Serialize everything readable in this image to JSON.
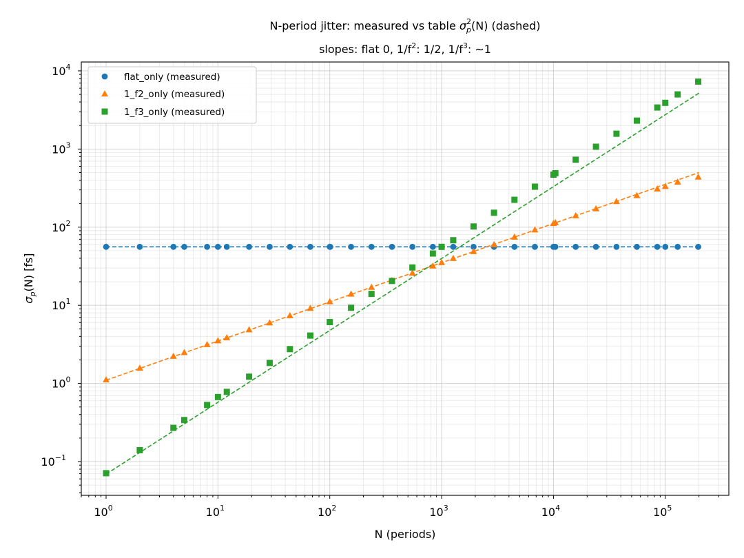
{
  "chart_data": {
    "type": "scatter",
    "title": "N-period jitter: measured vs table σ²p(N) (dashed)",
    "title_parts": {
      "before": "N-period jitter: measured vs table ",
      "sigma": "σ",
      "sup": "2",
      "sub": "p",
      "after": "(N) (dashed)"
    },
    "subtitle": "slopes: flat 0,  1/f²: 1/2,  1/f³: ~1",
    "subtitle_parts": {
      "p1": "slopes: flat 0,  1/f",
      "sup1": "2",
      "p2": ": 1/2,  1/f",
      "sup2": "3",
      "p3": ": ~1"
    },
    "xlabel": "N  (periods)",
    "ylabel": "σp(N)  [fs]",
    "ylabel_parts": {
      "sigma": "σ",
      "sub": "p",
      "after": "(N)  [fs]"
    },
    "xscale": "log",
    "yscale": "log",
    "xlim": [
      0.6,
      370000
    ],
    "ylim": [
      0.037,
      13000
    ],
    "x_tick_labels": [
      {
        "value": 1,
        "base": "10",
        "exp": "0"
      },
      {
        "value": 10,
        "base": "10",
        "exp": "1"
      },
      {
        "value": 100,
        "base": "10",
        "exp": "2"
      },
      {
        "value": 1000,
        "base": "10",
        "exp": "3"
      },
      {
        "value": 10000,
        "base": "10",
        "exp": "4"
      },
      {
        "value": 100000,
        "base": "10",
        "exp": "5"
      }
    ],
    "y_tick_labels": [
      {
        "value": 0.1,
        "base": "10",
        "exp": "−1"
      },
      {
        "value": 1,
        "base": "10",
        "exp": "0"
      },
      {
        "value": 10,
        "base": "10",
        "exp": "1"
      },
      {
        "value": 100,
        "base": "10",
        "exp": "2"
      },
      {
        "value": 1000,
        "base": "10",
        "exp": "3"
      },
      {
        "value": 10000,
        "base": "10",
        "exp": "4"
      }
    ],
    "grid": true,
    "legend_position": "top-left",
    "series": [
      {
        "name": "flat_only (measured)",
        "color": "#1f77b4",
        "marker": "circle",
        "x": [
          1,
          2,
          4,
          5,
          8,
          10,
          12,
          19,
          29,
          44,
          67,
          100,
          101,
          155,
          236,
          360,
          548,
          835,
          1000,
          1270,
          1930,
          2940,
          4480,
          6820,
          10000,
          10400,
          15800,
          24000,
          36600,
          55700,
          84800,
          100000,
          129000,
          197000
        ],
        "y": [
          56,
          56,
          56,
          56,
          56,
          56,
          56,
          56,
          56,
          56,
          56,
          56,
          56,
          56,
          56,
          56,
          56,
          56,
          56,
          56,
          56,
          56,
          56,
          56,
          56,
          56,
          56,
          56,
          56,
          56,
          56,
          56,
          56,
          56
        ],
        "table": {
          "x": [
            1,
            200000
          ],
          "y": [
            56,
            56
          ]
        }
      },
      {
        "name": "1_f2_only (measured)",
        "color": "#ff7f0e",
        "marker": "triangle",
        "x": [
          1,
          2,
          4,
          5,
          8,
          10,
          12,
          19,
          29,
          44,
          67,
          100,
          155,
          236,
          360,
          548,
          835,
          1000,
          1270,
          1930,
          2940,
          4480,
          6820,
          10000,
          10400,
          15800,
          24000,
          36600,
          55700,
          84800,
          100000,
          129000,
          197000
        ],
        "y": [
          1.12,
          1.58,
          2.24,
          2.5,
          3.16,
          3.54,
          3.87,
          4.9,
          6.0,
          7.4,
          9.2,
          11.2,
          14.0,
          17.1,
          20.9,
          26.0,
          32.0,
          35.4,
          40.0,
          49.0,
          60.0,
          75.0,
          93.0,
          112,
          115,
          141,
          173,
          214,
          255,
          310,
          335,
          380,
          440
        ],
        "table": {
          "x": [
            1,
            200000
          ],
          "y": [
            1.1,
            500
          ]
        }
      },
      {
        "name": "1_f3_only (measured)",
        "color": "#2ca02c",
        "marker": "square",
        "x": [
          1,
          2,
          4,
          5,
          8,
          10,
          12,
          19,
          29,
          44,
          67,
          100,
          155,
          236,
          360,
          548,
          835,
          1000,
          1270,
          1930,
          2940,
          4480,
          6820,
          10000,
          10400,
          15800,
          24000,
          36600,
          55700,
          84800,
          100000,
          129000,
          197000
        ],
        "y": [
          0.071,
          0.14,
          0.27,
          0.34,
          0.53,
          0.67,
          0.78,
          1.22,
          1.83,
          2.75,
          4.1,
          6.1,
          9.3,
          14.0,
          20.5,
          30.5,
          46.0,
          56.0,
          68.0,
          102,
          153,
          224,
          330,
          470,
          490,
          730,
          1070,
          1570,
          2310,
          3400,
          3900,
          5000,
          7300
        ],
        "table": {
          "x": [
            1,
            200000
          ],
          "y": [
            0.069,
            5200
          ]
        }
      }
    ]
  }
}
